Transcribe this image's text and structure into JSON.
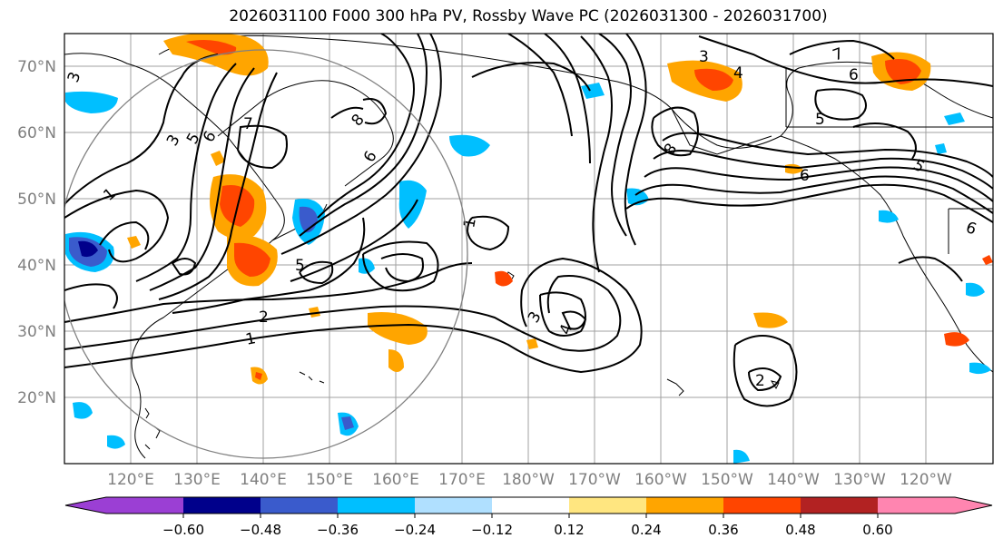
{
  "title": "2026031100 F000 300 hPa PV, Rossby Wave PC (2026031300 - 2026031700)",
  "axes": {
    "lat_labels": [
      "70°N",
      "60°N",
      "50°N",
      "40°N",
      "30°N",
      "20°N"
    ],
    "lon_labels": [
      "120°E",
      "130°E",
      "140°E",
      "150°E",
      "160°E",
      "170°E",
      "180°W",
      "170°W",
      "160°W",
      "150°W",
      "140°W",
      "130°W",
      "120°W"
    ]
  },
  "colorbar": {
    "ticks": [
      "−0.60",
      "−0.48",
      "−0.36",
      "−0.24",
      "−0.12",
      "0.12",
      "0.24",
      "0.36",
      "0.48",
      "0.60"
    ],
    "colors": {
      "extend_low": "#9b3fd4",
      "c1": "#9b3fd4",
      "c2": "#00008b",
      "c3": "#3a5bcc",
      "c4": "#00bfff",
      "c5": "#b0e0ff",
      "c6": "#ffffff",
      "c7": "#ffe680",
      "c8": "#ffa500",
      "c9": "#ff4500",
      "c10": "#b22222",
      "c11": "#ff85b0"
    }
  },
  "contour_labels": [
    "1",
    "2",
    "3",
    "4",
    "5",
    "6",
    "7",
    "8"
  ],
  "colors": {
    "grid": "#a0a0a0",
    "contour": "#000000",
    "circle": "#808080",
    "pos_low": "#ffe680",
    "pos_mid": "#ffa500",
    "pos_high": "#ff4500",
    "neg_low": "#b0e0ff",
    "neg_mid": "#00bfff",
    "neg_high": "#3a5bcc",
    "neg_max": "#00008b"
  }
}
